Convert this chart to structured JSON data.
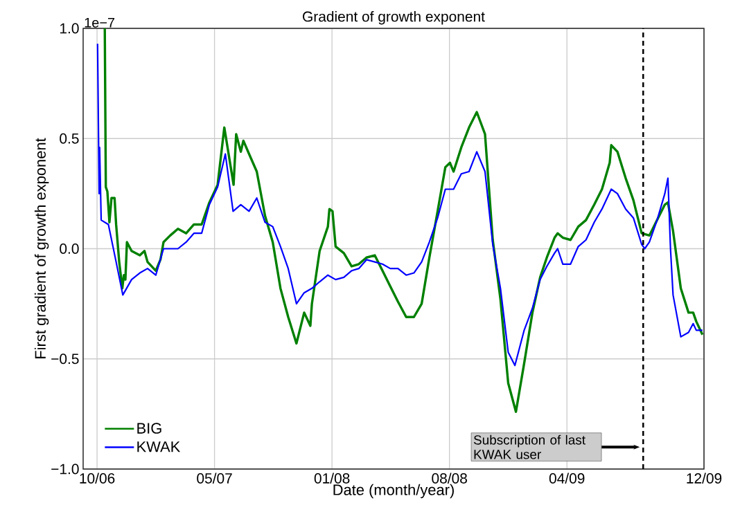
{
  "chart_data": {
    "type": "line",
    "title": "Gradient of growth exponent",
    "xlabel": "Date (month/year)",
    "ylabel": "First gradient of growth exponent",
    "annotations": [
      "1e−7",
      "Subscription of last KWAK user"
    ],
    "xlim": [
      "2006-09-13",
      "2009-12-31"
    ],
    "xticks": [
      {
        "value": "2006-10-10",
        "label": "10/06"
      },
      {
        "value": "2007-05-26",
        "label": "05/07"
      },
      {
        "value": "2008-01-09",
        "label": "01/08"
      },
      {
        "value": "2008-08-24",
        "label": "08/08"
      },
      {
        "value": "2009-04-09",
        "label": "04/09"
      },
      {
        "value": "2009-12-31",
        "label": "12/09"
      }
    ],
    "ylim": [
      -1.0,
      1.0
    ],
    "yticks": [
      {
        "value": -1.0,
        "label": "−1.0"
      },
      {
        "value": -0.5,
        "label": "−0.5"
      },
      {
        "value": 0.0,
        "label": "0.0"
      },
      {
        "value": 0.5,
        "label": "0.5"
      },
      {
        "value": 1.0,
        "label": "1.0"
      }
    ],
    "grid": true,
    "legend": "bottom left",
    "marker": "none",
    "line_style": "solid",
    "ref_lines": [
      {
        "axis": "x",
        "value": "2009-09-04",
        "color": "#000000",
        "line_style": "dashed"
      }
    ],
    "series": [
      {
        "name": "BIG",
        "color": "#008000",
        "x": [
          "2006-10-25",
          "2006-10-27",
          "2006-10-30",
          "2006-11-03",
          "2006-11-07",
          "2006-11-13",
          "2006-11-16",
          "2006-11-22",
          "2006-11-28",
          "2006-12-01",
          "2006-12-04",
          "2006-12-07",
          "2006-12-16",
          "2007-01-01",
          "2007-01-10",
          "2007-01-16",
          "2007-02-01",
          "2007-02-10",
          "2007-02-16",
          "2007-03-01",
          "2007-03-16",
          "2007-04-01",
          "2007-04-16",
          "2007-05-01",
          "2007-05-16",
          "2007-06-01",
          "2007-06-14",
          "2007-07-02",
          "2007-07-07",
          "2007-07-16",
          "2007-07-21",
          "2007-08-01",
          "2007-08-16",
          "2007-09-01",
          "2007-09-16",
          "2007-10-01",
          "2007-10-16",
          "2007-11-01",
          "2007-11-16",
          "2007-11-28",
          "2007-12-01",
          "2007-12-16",
          "2008-01-01",
          "2008-01-04",
          "2008-01-10",
          "2008-01-16",
          "2008-02-01",
          "2008-02-16",
          "2008-03-01",
          "2008-03-16",
          "2008-04-01",
          "2008-04-16",
          "2008-05-01",
          "2008-05-16",
          "2008-06-01",
          "2008-06-16",
          "2008-07-01",
          "2008-07-16",
          "2008-08-01",
          "2008-08-16",
          "2008-08-25",
          "2008-09-01",
          "2008-09-16",
          "2008-10-01",
          "2008-10-16",
          "2008-11-01",
          "2008-11-16",
          "2008-12-01",
          "2008-12-16",
          "2008-12-31",
          "2009-01-16",
          "2009-02-01",
          "2009-02-16",
          "2009-03-01",
          "2009-03-16",
          "2009-03-22",
          "2009-04-01",
          "2009-04-16",
          "2009-05-01",
          "2009-05-16",
          "2009-06-01",
          "2009-06-16",
          "2009-07-01",
          "2009-07-04",
          "2009-07-16",
          "2009-08-01",
          "2009-08-16",
          "2009-09-01",
          "2009-09-16",
          "2009-10-01",
          "2009-10-16",
          "2009-10-22",
          "2009-11-01",
          "2009-11-16",
          "2009-12-01",
          "2009-12-10",
          "2009-12-16",
          "2009-12-28"
        ],
        "values": [
          1.0,
          0.28,
          0.26,
          0.12,
          0.23,
          0.23,
          0.11,
          -0.06,
          -0.18,
          -0.12,
          -0.14,
          0.03,
          -0.01,
          -0.03,
          -0.01,
          -0.06,
          -0.1,
          -0.05,
          0.03,
          0.06,
          0.09,
          0.07,
          0.11,
          0.11,
          0.21,
          0.29,
          0.55,
          0.29,
          0.52,
          0.44,
          0.49,
          0.43,
          0.35,
          0.15,
          0.03,
          -0.18,
          -0.31,
          -0.43,
          -0.29,
          -0.35,
          -0.25,
          -0.01,
          0.1,
          0.18,
          0.17,
          0.01,
          -0.02,
          -0.08,
          -0.07,
          -0.04,
          -0.03,
          -0.1,
          -0.17,
          -0.24,
          -0.31,
          -0.31,
          -0.25,
          -0.04,
          0.17,
          0.37,
          0.39,
          0.35,
          0.46,
          0.55,
          0.62,
          0.52,
          0.04,
          -0.23,
          -0.61,
          -0.74,
          -0.52,
          -0.29,
          -0.13,
          -0.04,
          0.05,
          0.07,
          0.05,
          0.04,
          0.1,
          0.13,
          0.2,
          0.27,
          0.39,
          0.47,
          0.44,
          0.32,
          0.22,
          0.07,
          0.06,
          0.13,
          0.2,
          0.21,
          0.08,
          -0.18,
          -0.29,
          -0.29,
          -0.33,
          -0.39
        ]
      },
      {
        "name": "KWAK",
        "color": "#0000ff",
        "x": [
          "2006-10-11",
          "2006-10-14",
          "2006-10-15",
          "2006-10-18",
          "2006-11-01",
          "2006-11-16",
          "2006-11-29",
          "2006-12-16",
          "2007-01-01",
          "2007-01-16",
          "2007-02-01",
          "2007-02-16",
          "2007-03-01",
          "2007-03-16",
          "2007-04-01",
          "2007-04-16",
          "2007-05-01",
          "2007-05-16",
          "2007-06-01",
          "2007-06-16",
          "2007-07-01",
          "2007-07-16",
          "2007-08-01",
          "2007-08-16",
          "2007-09-01",
          "2007-09-16",
          "2007-10-01",
          "2007-10-16",
          "2007-11-01",
          "2007-11-16",
          "2007-12-01",
          "2007-12-16",
          "2008-01-01",
          "2008-01-16",
          "2008-02-01",
          "2008-02-16",
          "2008-03-01",
          "2008-03-16",
          "2008-04-01",
          "2008-04-16",
          "2008-05-01",
          "2008-05-16",
          "2008-06-01",
          "2008-06-16",
          "2008-07-01",
          "2008-07-16",
          "2008-08-01",
          "2008-08-16",
          "2008-09-01",
          "2008-09-16",
          "2008-10-01",
          "2008-10-16",
          "2008-11-01",
          "2008-11-16",
          "2008-12-01",
          "2008-12-16",
          "2008-12-29",
          "2009-01-16",
          "2009-02-01",
          "2009-02-16",
          "2009-03-01",
          "2009-03-16",
          "2009-03-22",
          "2009-04-01",
          "2009-04-16",
          "2009-05-01",
          "2009-05-16",
          "2009-06-01",
          "2009-06-16",
          "2009-07-04",
          "2009-07-16",
          "2009-08-01",
          "2009-08-16",
          "2009-09-01",
          "2009-09-07",
          "2009-09-16",
          "2009-10-01",
          "2009-10-16",
          "2009-10-22",
          "2009-10-27",
          "2009-11-01",
          "2009-11-16",
          "2009-12-01",
          "2009-12-10",
          "2009-12-16",
          "2009-12-28"
        ],
        "values": [
          0.93,
          0.25,
          0.46,
          0.13,
          0.11,
          -0.06,
          -0.21,
          -0.14,
          -0.11,
          -0.09,
          -0.12,
          0.0,
          0.0,
          0.0,
          0.03,
          0.07,
          0.07,
          0.2,
          0.28,
          0.43,
          0.17,
          0.2,
          0.17,
          0.23,
          0.12,
          0.1,
          0.01,
          -0.09,
          -0.25,
          -0.2,
          -0.18,
          -0.15,
          -0.12,
          -0.14,
          -0.13,
          -0.1,
          -0.09,
          -0.05,
          -0.06,
          -0.07,
          -0.09,
          -0.09,
          -0.12,
          -0.11,
          -0.06,
          0.03,
          0.14,
          0.27,
          0.27,
          0.34,
          0.35,
          0.44,
          0.35,
          0.02,
          -0.18,
          -0.47,
          -0.53,
          -0.37,
          -0.27,
          -0.14,
          -0.08,
          -0.02,
          0.0,
          -0.07,
          -0.07,
          0.01,
          0.04,
          0.12,
          0.18,
          0.27,
          0.25,
          0.18,
          0.14,
          0.02,
          0.0,
          0.03,
          0.13,
          0.25,
          0.32,
          0.0,
          -0.21,
          -0.4,
          -0.38,
          -0.34,
          -0.37,
          -0.37
        ]
      }
    ]
  }
}
